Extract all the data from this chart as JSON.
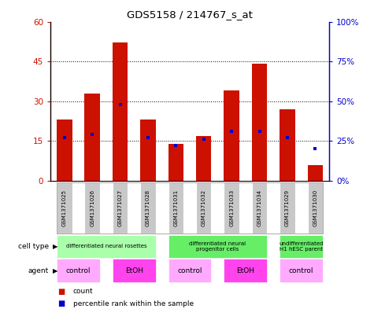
{
  "title": "GDS5158 / 214767_s_at",
  "samples": [
    "GSM1371025",
    "GSM1371026",
    "GSM1371027",
    "GSM1371028",
    "GSM1371031",
    "GSM1371032",
    "GSM1371033",
    "GSM1371034",
    "GSM1371029",
    "GSM1371030"
  ],
  "counts": [
    23,
    33,
    52,
    23,
    14,
    17,
    34,
    44,
    27,
    6
  ],
  "percentiles": [
    27,
    29,
    48,
    27,
    22,
    26,
    31,
    31,
    27,
    20
  ],
  "ylim_left": [
    0,
    60
  ],
  "ylim_right": [
    0,
    100
  ],
  "yticks_left": [
    0,
    15,
    30,
    45,
    60
  ],
  "yticks_right": [
    0,
    25,
    50,
    75,
    100
  ],
  "yticklabels_right": [
    "0",
    "25",
    "50",
    "75",
    "100%"
  ],
  "bar_color": "#cc1100",
  "dot_color": "#0000cc",
  "sample_box_color": "#c8c8c8",
  "ct_color_rosettes": "#aaffaa",
  "ct_color_progenitor": "#66ee66",
  "ct_color_undiff": "#66ee66",
  "ag_color_control": "#ffaaff",
  "ag_color_etoh": "#ff44ee",
  "legend_count_label": "count",
  "legend_pct_label": "percentile rank within the sample",
  "cell_type_label": "cell type",
  "agent_label": "agent"
}
